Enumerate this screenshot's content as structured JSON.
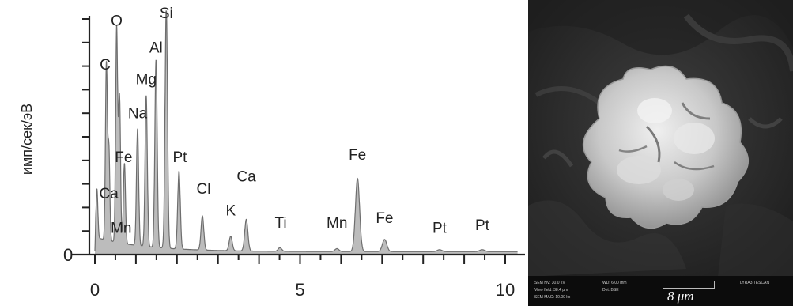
{
  "chart_data": {
    "type": "line",
    "xlabel": "",
    "ylabel": "имп/сек/эВ",
    "xlim": [
      0,
      10.3
    ],
    "ylim": [
      0,
      100
    ],
    "x_ticks": [
      0,
      5,
      10
    ],
    "x_tick_labels": [
      "0",
      "5",
      "10"
    ],
    "y_tick_labels": [
      "0"
    ],
    "grid": false,
    "spectrum_peaks": [
      {
        "x": 0.05,
        "y": 20
      },
      {
        "x": 0.28,
        "y": 72
      },
      {
        "x": 0.34,
        "y": 38
      },
      {
        "x": 0.53,
        "y": 88
      },
      {
        "x": 0.6,
        "y": 60
      },
      {
        "x": 0.72,
        "y": 33
      },
      {
        "x": 1.04,
        "y": 48
      },
      {
        "x": 1.25,
        "y": 62
      },
      {
        "x": 1.49,
        "y": 77
      },
      {
        "x": 1.74,
        "y": 100
      },
      {
        "x": 2.05,
        "y": 32
      },
      {
        "x": 2.62,
        "y": 14
      },
      {
        "x": 3.31,
        "y": 6
      },
      {
        "x": 3.69,
        "y": 13
      },
      {
        "x": 4.51,
        "y": 1.5
      },
      {
        "x": 5.9,
        "y": 1.2
      },
      {
        "x": 6.4,
        "y": 30
      },
      {
        "x": 7.06,
        "y": 5
      },
      {
        "x": 8.4,
        "y": 0.8
      },
      {
        "x": 9.44,
        "y": 0.8
      }
    ],
    "peak_labels": [
      {
        "text": "O",
        "x": 0.53,
        "y": 94
      },
      {
        "text": "Si",
        "x": 1.74,
        "y": 97
      },
      {
        "text": "C",
        "x": 0.25,
        "y": 76
      },
      {
        "text": "Al",
        "x": 1.49,
        "y": 83
      },
      {
        "text": "Mg",
        "x": 1.25,
        "y": 70
      },
      {
        "text": "Na",
        "x": 1.04,
        "y": 56
      },
      {
        "text": "Fe",
        "x": 0.7,
        "y": 38
      },
      {
        "text": "Pt",
        "x": 2.07,
        "y": 38
      },
      {
        "text": "Cl",
        "x": 2.65,
        "y": 25
      },
      {
        "text": "Ca",
        "x": 3.69,
        "y": 30
      },
      {
        "text": "Ca",
        "x": 0.34,
        "y": 23
      },
      {
        "text": "K",
        "x": 3.31,
        "y": 16
      },
      {
        "text": "Mn",
        "x": 0.64,
        "y": 9
      },
      {
        "text": "Ti",
        "x": 4.53,
        "y": 11
      },
      {
        "text": "Mn",
        "x": 5.9,
        "y": 11
      },
      {
        "text": "Fe",
        "x": 6.4,
        "y": 39
      },
      {
        "text": "Fe",
        "x": 7.06,
        "y": 13
      },
      {
        "text": "Pt",
        "x": 8.4,
        "y": 9
      },
      {
        "text": "Pt",
        "x": 9.44,
        "y": 10
      }
    ]
  },
  "colors": {
    "spectrum_fill": "#bcbcbc",
    "spectrum_stroke": "#6e6e6e",
    "axis": "#222222",
    "sem_background": "#2a2a2a",
    "particle": "#d6d6d6"
  },
  "sem": {
    "scale_bar_text": "8 μm",
    "meta": {
      "hv": "SEM HV: 30.0 kV",
      "wd": "WD: 6.00 mm",
      "view_field": "View field: 38.4 μm",
      "det": "Det: BSE",
      "date": "SEM MAG: 10.00 kx",
      "vendor": "LYRA3 TESCAN"
    }
  }
}
